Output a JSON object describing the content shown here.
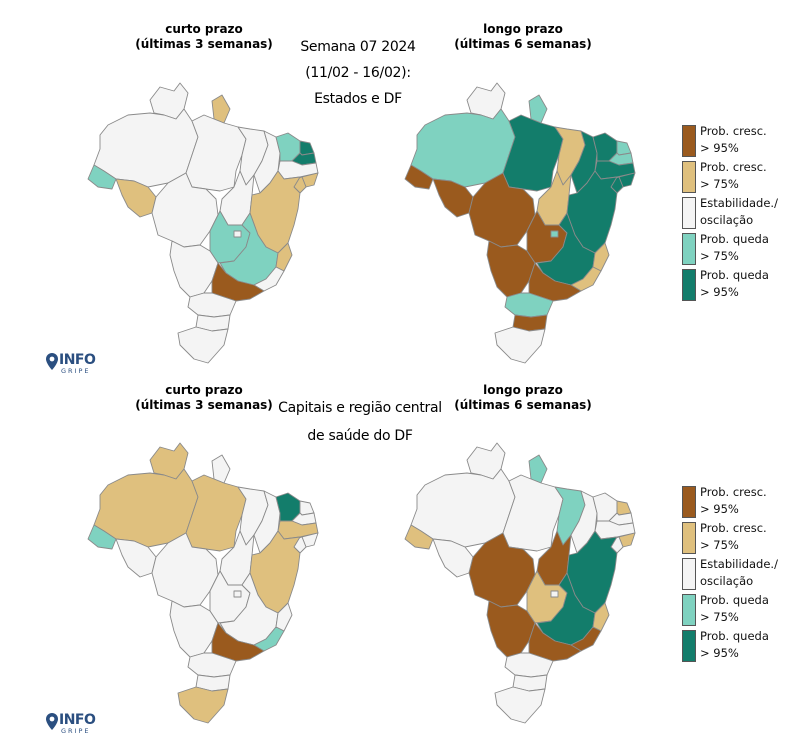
{
  "colors": {
    "prob_cresc_95": "#9a5a1e",
    "prob_cresc_75": "#dfc07e",
    "estabilidade": "#f4f4f4",
    "prob_queda_75": "#7fd2c0",
    "prob_queda_95": "#137d6b"
  },
  "header": {
    "line1": "Semana 07 2024",
    "line2": "(11/02 - 16/02):",
    "line3": "Estados e DF"
  },
  "header2": {
    "line1": "Capitais e região central",
    "line2": "de saúde do DF"
  },
  "panels": {
    "top_left": {
      "title1": "curto prazo",
      "title2": "(últimas 3 semanas)"
    },
    "top_right": {
      "title1": "longo prazo",
      "title2": "(últimas 6 semanas)"
    },
    "bottom_left": {
      "title1": "curto prazo",
      "title2": "(últimas 3 semanas)"
    },
    "bottom_right": {
      "title1": "longo prazo",
      "title2": "(últimas 6 semanas)"
    }
  },
  "legend": {
    "items": [
      {
        "label": "Prob. cresc.\n> 95%",
        "color": "#9a5a1e"
      },
      {
        "label": "Prob. cresc.\n> 75%",
        "color": "#dfc07e"
      },
      {
        "label": "Estabilidade./\noscilação",
        "color": "#f4f4f4"
      },
      {
        "label": "Prob. queda\n> 75%",
        "color": "#7fd2c0"
      },
      {
        "label": "Prob. queda\n> 95%",
        "color": "#137d6b"
      }
    ]
  },
  "logo": {
    "info": "INFO",
    "gripe": "GRIPE",
    "icon": "location-pin-icon"
  },
  "maps": {
    "top_left": {
      "AM": "estabilidade",
      "PA": "estabilidade",
      "MT": "estabilidade",
      "RR": "estabilidade",
      "AP": "prob_cresc_75",
      "AC": "prob_queda_75",
      "RO": "prob_cresc_75",
      "TO": "estabilidade",
      "MA": "estabilidade",
      "PI": "estabilidade",
      "CE": "prob_queda_75",
      "RN": "prob_queda_95",
      "PB": "prob_queda_95",
      "PE": "estabilidade",
      "AL": "prob_cresc_75",
      "SE": "prob_cresc_75",
      "BA": "prob_cresc_75",
      "GO": "prob_queda_75",
      "DF": "estabilidade",
      "MG": "prob_queda_75",
      "ES": "prob_cresc_75",
      "RJ": "estabilidade",
      "MS": "estabilidade",
      "SP": "prob_cresc_95",
      "PR": "estabilidade",
      "SC": "estabilidade",
      "RS": "estabilidade"
    },
    "top_right": {
      "AM": "prob_queda_75",
      "PA": "prob_queda_95",
      "MT": "prob_cresc_95",
      "RR": "estabilidade",
      "AP": "prob_queda_75",
      "AC": "prob_cresc_95",
      "RO": "prob_cresc_95",
      "TO": "prob_cresc_75",
      "MA": "prob_cresc_75",
      "PI": "prob_queda_95",
      "CE": "prob_queda_95",
      "RN": "prob_queda_75",
      "PB": "prob_queda_75",
      "PE": "prob_queda_95",
      "AL": "prob_queda_95",
      "SE": "prob_queda_95",
      "BA": "prob_queda_95",
      "GO": "prob_cresc_95",
      "DF": "prob_queda_75",
      "MG": "prob_queda_95",
      "ES": "prob_cresc_75",
      "RJ": "prob_cresc_75",
      "MS": "prob_cresc_95",
      "SP": "prob_cresc_95",
      "PR": "prob_queda_75",
      "SC": "prob_cresc_95",
      "RS": "estabilidade"
    },
    "bottom_left": {
      "AM": "prob_cresc_75",
      "PA": "prob_cresc_75",
      "MT": "estabilidade",
      "RR": "prob_cresc_75",
      "AP": "estabilidade",
      "AC": "prob_queda_75",
      "RO": "estabilidade",
      "TO": "estabilidade",
      "MA": "estabilidade",
      "PI": "estabilidade",
      "CE": "prob_queda_95",
      "RN": "estabilidade",
      "PB": "estabilidade",
      "PE": "prob_cresc_75",
      "AL": "estabilidade",
      "SE": "estabilidade",
      "BA": "prob_cresc_75",
      "GO": "estabilidade",
      "DF": "estabilidade",
      "MG": "estabilidade",
      "ES": "estabilidade",
      "RJ": "prob_queda_75",
      "MS": "estabilidade",
      "SP": "prob_cresc_95",
      "PR": "estabilidade",
      "SC": "estabilidade",
      "RS": "prob_cresc_75"
    },
    "bottom_right": {
      "AM": "estabilidade",
      "PA": "estabilidade",
      "MT": "prob_cresc_95",
      "RR": "estabilidade",
      "AP": "prob_queda_75",
      "AC": "prob_cresc_75",
      "RO": "estabilidade",
      "TO": "prob_cresc_95",
      "MA": "prob_queda_75",
      "PI": "estabilidade",
      "CE": "estabilidade",
      "RN": "prob_cresc_75",
      "PB": "estabilidade",
      "PE": "estabilidade",
      "AL": "prob_cresc_75",
      "SE": "estabilidade",
      "BA": "prob_queda_95",
      "GO": "prob_cresc_75",
      "DF": "estabilidade",
      "MG": "prob_queda_95",
      "ES": "prob_cresc_75",
      "RJ": "prob_cresc_95",
      "MS": "prob_cresc_95",
      "SP": "prob_cresc_95",
      "PR": "estabilidade",
      "SC": "estabilidade",
      "RS": "estabilidade"
    }
  }
}
